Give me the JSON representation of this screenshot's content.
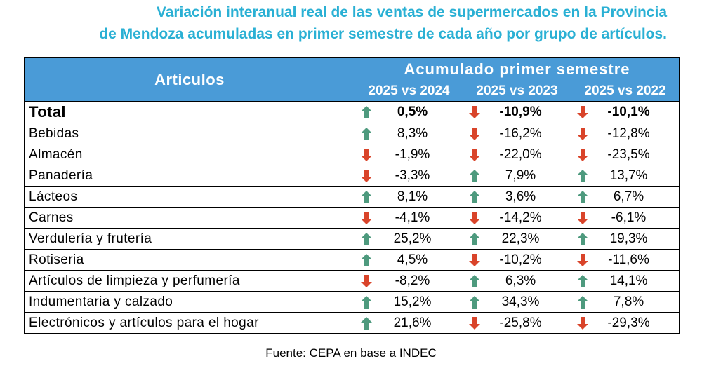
{
  "title": {
    "line1": "Variación interanual real de las ventas de supermercados en la Provincia",
    "line2": "de Mendoza acumuladas en primer semestre de cada año por grupo de artículos."
  },
  "table": {
    "header_articulos": "Articulos",
    "header_group": "Acumulado primer semestre",
    "columns": [
      "2025 vs 2024",
      "2025 vs 2023",
      "2025 vs 2022"
    ],
    "rows": [
      {
        "name": "Total",
        "values": [
          "0,5%",
          "-10,9%",
          "-10,1%"
        ],
        "dirs": [
          "up",
          "down",
          "down"
        ]
      },
      {
        "name": "Bebidas",
        "values": [
          "8,3%",
          "-16,2%",
          "-12,8%"
        ],
        "dirs": [
          "up",
          "down",
          "down"
        ]
      },
      {
        "name": "Almacén",
        "values": [
          "-1,9%",
          "-22,0%",
          "-23,5%"
        ],
        "dirs": [
          "down",
          "down",
          "down"
        ]
      },
      {
        "name": "Panadería",
        "values": [
          "-3,3%",
          "7,9%",
          "13,7%"
        ],
        "dirs": [
          "down",
          "up",
          "up"
        ]
      },
      {
        "name": "Lácteos",
        "values": [
          "8,1%",
          "3,6%",
          "6,7%"
        ],
        "dirs": [
          "up",
          "up",
          "up"
        ]
      },
      {
        "name": "Carnes",
        "values": [
          "-4,1%",
          "-14,2%",
          "-6,1%"
        ],
        "dirs": [
          "down",
          "down",
          "down"
        ]
      },
      {
        "name": "Verdulería y frutería",
        "values": [
          "25,2%",
          "22,3%",
          "19,3%"
        ],
        "dirs": [
          "up",
          "up",
          "up"
        ]
      },
      {
        "name": "Rotiseria",
        "values": [
          "4,5%",
          "-10,2%",
          "-11,6%"
        ],
        "dirs": [
          "up",
          "down",
          "down"
        ]
      },
      {
        "name": "Artículos de limpieza y perfumería",
        "values": [
          "-8,2%",
          "6,3%",
          "14,1%"
        ],
        "dirs": [
          "down",
          "up",
          "up"
        ]
      },
      {
        "name": "Indumentaria y calzado",
        "values": [
          "15,2%",
          "34,3%",
          "7,8%"
        ],
        "dirs": [
          "up",
          "up",
          "up"
        ]
      },
      {
        "name": "Electrónicos y artículos para el hogar",
        "values": [
          "21,6%",
          "-25,8%",
          "-29,3%"
        ],
        "dirs": [
          "up",
          "down",
          "down"
        ]
      }
    ]
  },
  "icons": {
    "up": "green-up-arrow-icon",
    "down": "red-down-arrow-icon"
  },
  "colors": {
    "up": "#4e9a7e",
    "down": "#d9442a",
    "header": "#4a9bd7",
    "title": "#2ab0d4"
  },
  "source": "Fuente: CEPA en base a INDEC"
}
